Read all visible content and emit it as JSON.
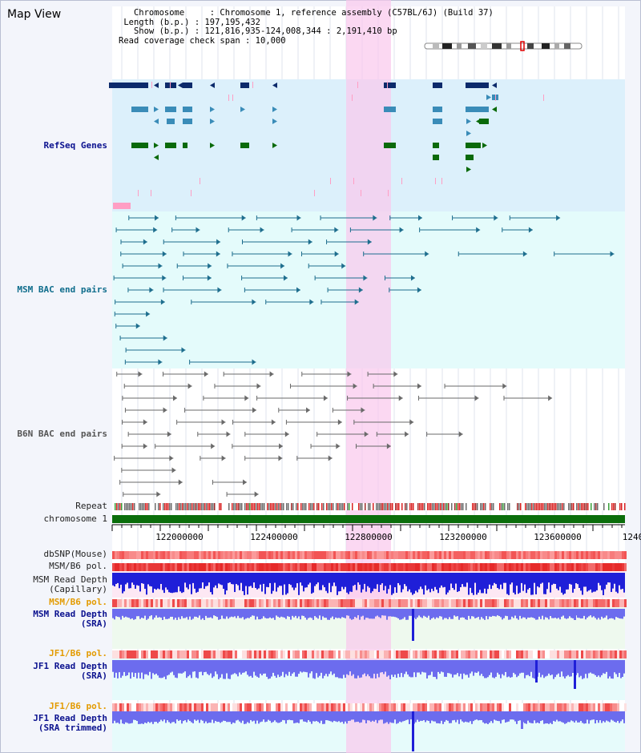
{
  "header": {
    "title": "Map View",
    "lines": [
      "   Chromosome     : Chromosome 1, reference assembly (C57BL/6J) (Build 37)",
      " Length (b.p.) : 197,195,432",
      "   Show (b.p.) : 121,816,935-124,008,344 : 2,191,410 bp",
      "Read coverage check span : 10,000"
    ]
  },
  "tracks": {
    "refseq": "RefSeq Genes",
    "msm_bac": "MSM BAC end pairs",
    "b6n_bac": "B6N BAC end pairs",
    "repeat": "Repeat",
    "chromosome": "chromosome 1",
    "dbsnp": "dbSNP(Mouse)",
    "msm_b6_pol": "MSM/B6 pol.",
    "msm_depth_cap_1": "MSM Read Depth",
    "msm_depth_cap_2": "(Capillary)",
    "msm_b6_pol_2": "MSM/B6 pol.",
    "msm_depth_sra_1": "MSM Read Depth",
    "msm_depth_sra_2": "(SRA)",
    "jf1_b6_pol": "JF1/B6 pol.",
    "jf1_depth_sra_1": "JF1 Read Depth",
    "jf1_depth_sra_2": "(SRA)",
    "jf1_b6_pol_2": "JF1/B6 pol.",
    "jf1_depth_trim_1": "JF1 Read Depth",
    "jf1_depth_trim_2": "(SRA trimmed)"
  },
  "axis": {
    "ticks": [
      "122000000",
      "122400000",
      "122800000",
      "123200000",
      "123600000",
      "1240"
    ]
  },
  "colors": {
    "highlight": "#f9d6f0",
    "refseq_bg": "#dcf0fb",
    "gene_dark": "#0c2a6b",
    "gene_mid": "#3a8cb8",
    "gene_green": "#0a6a0a",
    "msm_bac": "#1e6e8e",
    "b6n_bac": "#6a6a6a",
    "chromosome_bar": "#0b6e0b",
    "depth_dark": "#1f1fd8",
    "depth_light": "#6c6cee"
  }
}
